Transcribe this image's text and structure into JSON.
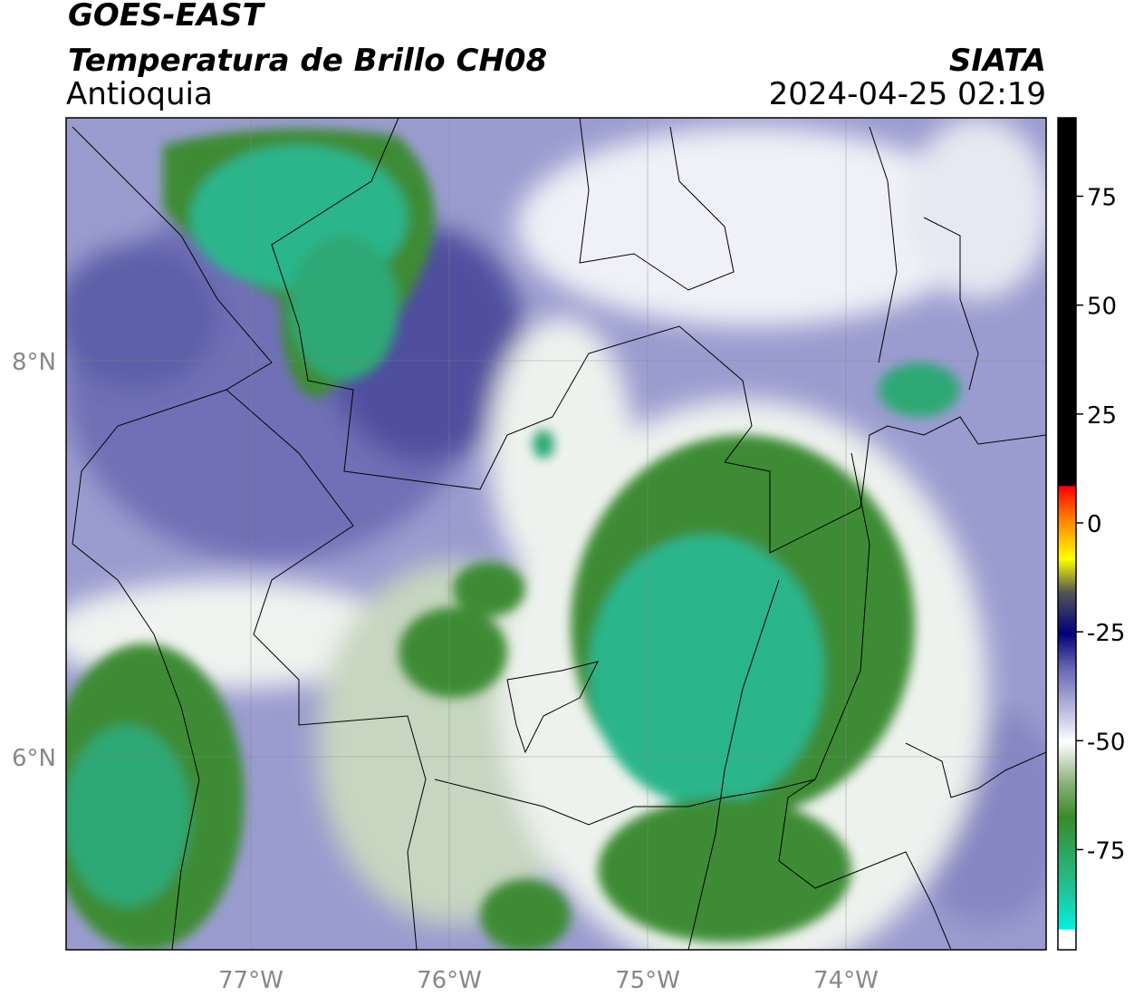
{
  "header": {
    "satellite": "GOES-EAST",
    "product": "Temperatura de Brillo CH08",
    "region": "Antioquia",
    "source": "SIATA",
    "datetime": "2024-04-25 02:19"
  },
  "map": {
    "lat_labels": [
      "8°N",
      "6°N"
    ],
    "lon_labels": [
      "77°W",
      "76°W",
      "75°W",
      "74°W"
    ]
  },
  "colorbar": {
    "range": [
      -98,
      93
    ],
    "ticks": [
      75,
      50,
      25,
      0,
      -25,
      -50,
      -75
    ]
  }
}
